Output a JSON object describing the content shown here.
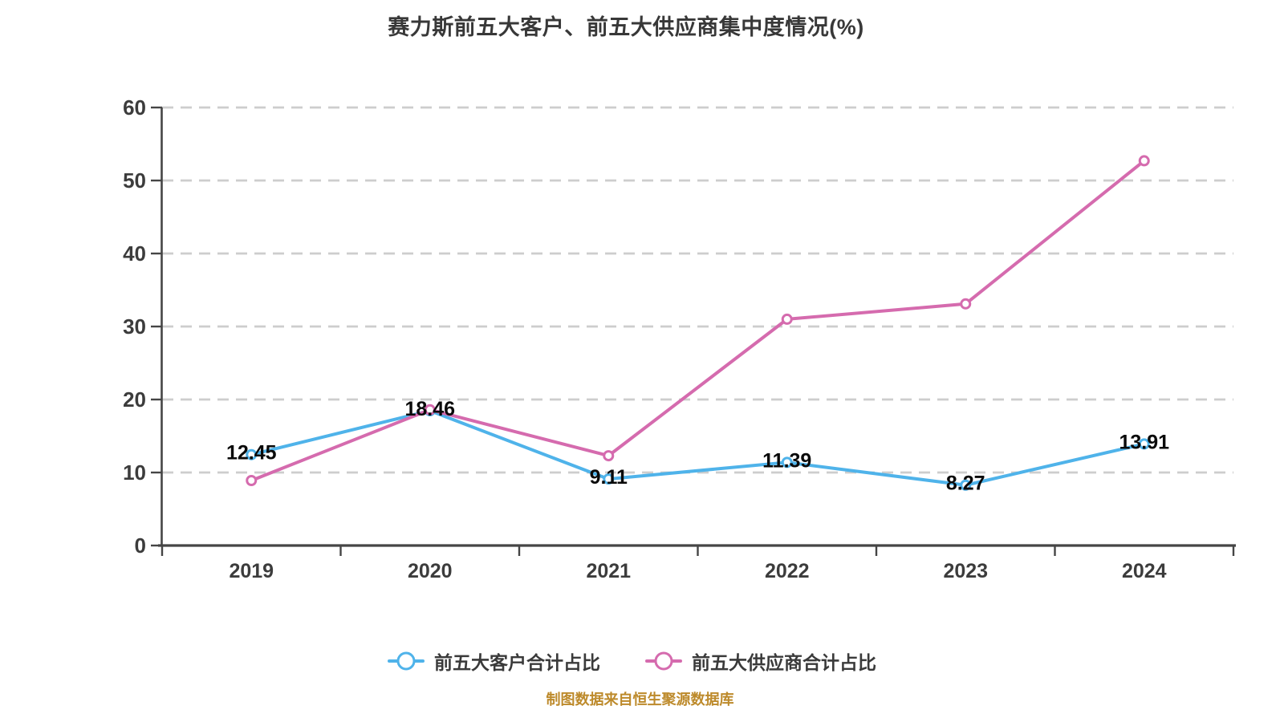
{
  "title": "赛力斯前五大客户、前五大供应商集中度情况(%)",
  "source_note": "制图数据来自恒生聚源数据库",
  "colors": {
    "customers": "#4FB3EA",
    "suppliers": "#D56BAE",
    "marker_fill": "#FFFFFF",
    "grid": "#CDCDCD",
    "axis": "#454545",
    "tick_label": "#3C3C3C",
    "title": "#383838",
    "data_label": "#0A0A0A",
    "legend_label": "#3A3A3A",
    "source_note": "#BD8A2B",
    "background": "#FFFFFF"
  },
  "chart_data": {
    "type": "line",
    "title": "赛力斯前五大客户、前五大供应商集中度情况(%)",
    "categories": [
      "2019",
      "2020",
      "2021",
      "2022",
      "2023",
      "2024"
    ],
    "series": [
      {
        "name": "前五大客户合计占比",
        "color_key": "customers",
        "values": [
          12.45,
          18.46,
          9.11,
          11.39,
          8.27,
          13.91
        ],
        "show_labels": true
      },
      {
        "name": "前五大供应商合计占比",
        "color_key": "suppliers",
        "values": [
          8.9,
          18.6,
          12.3,
          31.0,
          33.1,
          52.7
        ],
        "show_labels": false
      }
    ],
    "xlabel": "",
    "ylabel": "",
    "ylim": [
      0,
      60
    ],
    "y_ticks": [
      0,
      10,
      20,
      30,
      40,
      50,
      60
    ],
    "grid": "horizontal-dashed",
    "legend_position": "bottom"
  }
}
